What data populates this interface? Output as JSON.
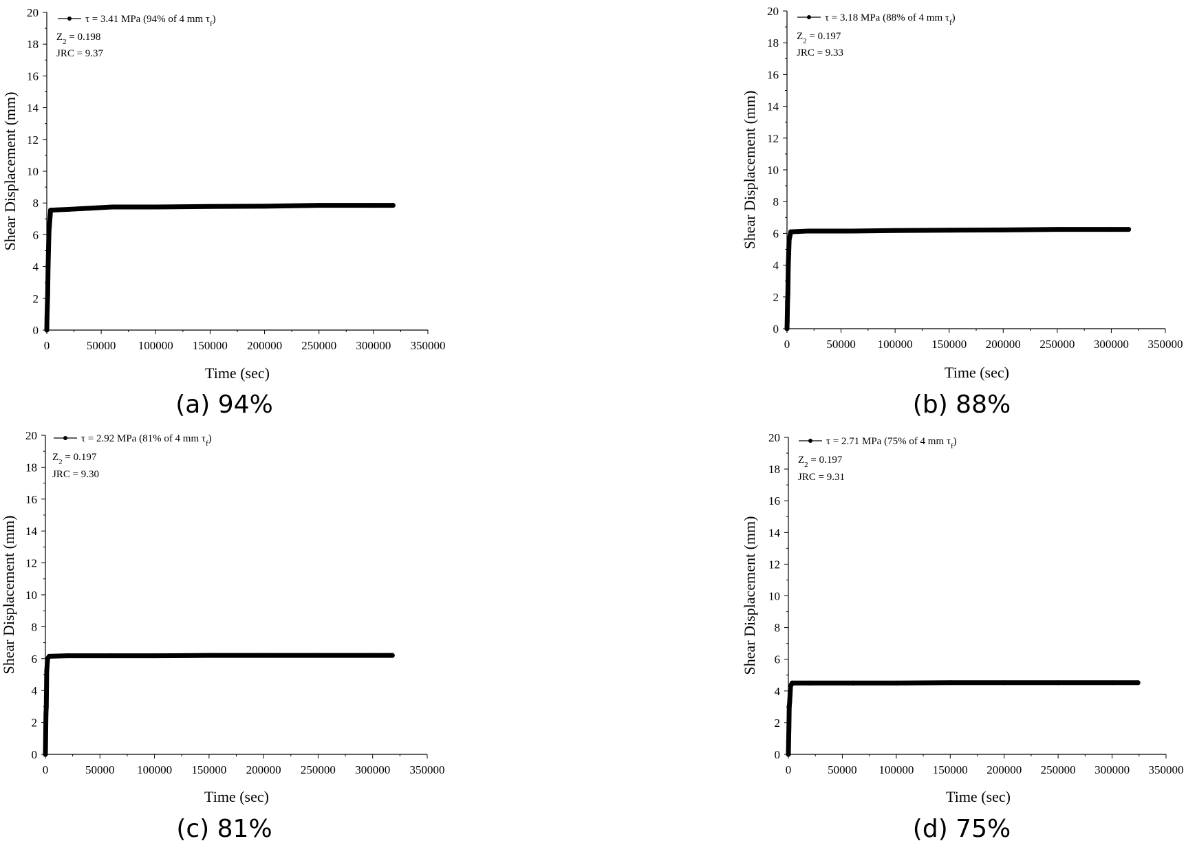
{
  "chart_data": [
    {
      "type": "line",
      "caption": "(a) 94%",
      "legend": {
        "prefix": "τ = 3.41 MPa (94% of 4 mm τ",
        "subscript": "f",
        "suffix": ")"
      },
      "z2": {
        "label": "Z",
        "sub": "2",
        "value": " = 0.198"
      },
      "jrc": "JRC = 9.37",
      "xlabel": "Time (sec)",
      "ylabel": "Shear Displacement (mm)",
      "xlim": [
        0,
        350000
      ],
      "ylim": [
        0,
        20
      ],
      "xticks": [
        "0",
        "50000",
        "100000",
        "150000",
        "200000",
        "250000",
        "300000",
        "350000"
      ],
      "yticks": [
        "0",
        "2",
        "4",
        "6",
        "8",
        "10",
        "12",
        "14",
        "16",
        "18",
        "20"
      ],
      "series": [
        {
          "name": "τ = 3.41 MPa",
          "x": [
            0,
            200,
            500,
            800,
            1200,
            2000,
            3500,
            20000,
            60000,
            100000,
            150000,
            200000,
            250000,
            300000,
            318000
          ],
          "y": [
            0,
            0.8,
            1.5,
            2.2,
            4.0,
            6.2,
            7.55,
            7.6,
            7.75,
            7.75,
            7.78,
            7.8,
            7.85,
            7.85,
            7.85
          ]
        }
      ]
    },
    {
      "type": "line",
      "caption": "(b) 88%",
      "legend": {
        "prefix": "τ = 3.18 MPa (88% of 4 mm τ",
        "subscript": "f",
        "suffix": ")"
      },
      "z2": {
        "label": "Z",
        "sub": "2",
        "value": " = 0.197"
      },
      "jrc": "JRC = 9.33",
      "xlabel": "Time (sec)",
      "ylabel": "Shear Displacement (mm)",
      "xlim": [
        0,
        350000
      ],
      "ylim": [
        0,
        20
      ],
      "xticks": [
        "0",
        "50000",
        "100000",
        "150000",
        "200000",
        "250000",
        "300000",
        "350000"
      ],
      "yticks": [
        "0",
        "2",
        "4",
        "6",
        "8",
        "10",
        "12",
        "14",
        "16",
        "18",
        "20"
      ],
      "series": [
        {
          "name": "τ = 3.18 MPa",
          "x": [
            0,
            200,
            500,
            800,
            1200,
            2000,
            3500,
            20000,
            60000,
            100000,
            150000,
            200000,
            250000,
            300000,
            316000
          ],
          "y": [
            0,
            0.5,
            1.7,
            2.2,
            4.0,
            5.6,
            6.1,
            6.15,
            6.15,
            6.18,
            6.2,
            6.22,
            6.25,
            6.25,
            6.25
          ]
        }
      ]
    },
    {
      "type": "line",
      "caption": "(c) 81%",
      "legend": {
        "prefix": "τ = 2.92 MPa (81% of 4 mm τ",
        "subscript": "f",
        "suffix": ")"
      },
      "z2": {
        "label": "Z",
        "sub": "2",
        "value": " = 0.197"
      },
      "jrc": "JRC = 9.30",
      "xlabel": "Time (sec)",
      "ylabel": "Shear Displacement (mm)",
      "xlim": [
        0,
        350000
      ],
      "ylim": [
        0,
        20
      ],
      "xticks": [
        "0",
        "50000",
        "100000",
        "150000",
        "200000",
        "250000",
        "300000",
        "350000"
      ],
      "yticks": [
        "0",
        "2",
        "4",
        "6",
        "8",
        "10",
        "12",
        "14",
        "16",
        "18",
        "20"
      ],
      "series": [
        {
          "name": "τ = 2.92 MPa",
          "x": [
            0,
            200,
            500,
            800,
            1200,
            2000,
            3500,
            20000,
            60000,
            100000,
            150000,
            200000,
            250000,
            300000,
            318000
          ],
          "y": [
            0,
            1.0,
            2.5,
            3.0,
            5.2,
            6.0,
            6.15,
            6.18,
            6.18,
            6.18,
            6.2,
            6.2,
            6.2,
            6.2,
            6.2
          ]
        }
      ]
    },
    {
      "type": "line",
      "caption": "(d) 75%",
      "legend": {
        "prefix": "τ = 2.71 MPa (75% of 4 mm τ",
        "subscript": "f",
        "suffix": ")"
      },
      "z2": {
        "label": "Z",
        "sub": "2",
        "value": " = 0.197"
      },
      "jrc": "JRC = 9.31",
      "xlabel": "Time (sec)",
      "ylabel": "Shear Displacement (mm)",
      "xlim": [
        0,
        350000
      ],
      "ylim": [
        0,
        20
      ],
      "xticks": [
        "0",
        "50000",
        "100000",
        "150000",
        "200000",
        "250000",
        "300000",
        "350000"
      ],
      "yticks": [
        "0",
        "2",
        "4",
        "6",
        "8",
        "10",
        "12",
        "14",
        "16",
        "18",
        "20"
      ],
      "series": [
        {
          "name": "τ = 2.71 MPa",
          "x": [
            0,
            200,
            500,
            800,
            1200,
            2000,
            3500,
            20000,
            60000,
            100000,
            150000,
            200000,
            250000,
            300000,
            324000
          ],
          "y": [
            0,
            0.8,
            1.7,
            3.0,
            3.3,
            4.3,
            4.5,
            4.5,
            4.5,
            4.5,
            4.52,
            4.52,
            4.52,
            4.52,
            4.52
          ]
        }
      ]
    }
  ]
}
